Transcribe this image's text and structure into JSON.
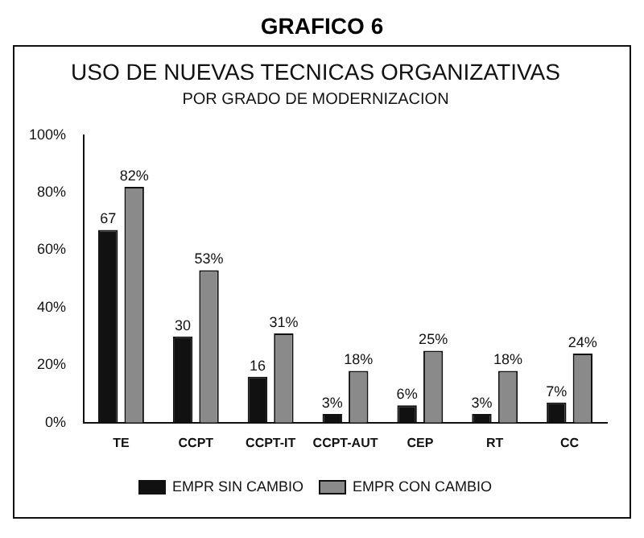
{
  "chart_data": {
    "type": "bar",
    "title": "USO DE NUEVAS TECNICAS ORGANIZATIVAS",
    "subtitle": "POR GRADO DE MODERNIZACION",
    "annotations": [
      "GRAFICO 6"
    ],
    "categories": [
      "TE",
      "CCPT",
      "CCPT-IT",
      "CCPT-AUT",
      "CEP",
      "RT",
      "CC"
    ],
    "series": [
      {
        "name": "EMPR SIN CAMBIO",
        "color": "#111111",
        "values": [
          67,
          30,
          16,
          3,
          6,
          3,
          7
        ],
        "value_labels": [
          "67",
          "30",
          "16",
          "3%",
          "6%",
          "3%",
          "7%"
        ]
      },
      {
        "name": "EMPR CON CAMBIO",
        "color": "#8a8a8a",
        "values": [
          82,
          53,
          31,
          18,
          25,
          18,
          24
        ],
        "value_labels": [
          "82%",
          "53%",
          "31%",
          "18%",
          "25%",
          "18%",
          "24%"
        ]
      }
    ],
    "ylim": [
      0,
      100
    ],
    "yticks": [
      {
        "value": 0,
        "label": "0%"
      },
      {
        "value": 20,
        "label": "20%"
      },
      {
        "value": 40,
        "label": "40%"
      },
      {
        "value": 60,
        "label": "60%"
      },
      {
        "value": 80,
        "label": "80%"
      },
      {
        "value": 100,
        "label": "100%"
      }
    ],
    "grid": false,
    "legend": "bottom"
  }
}
